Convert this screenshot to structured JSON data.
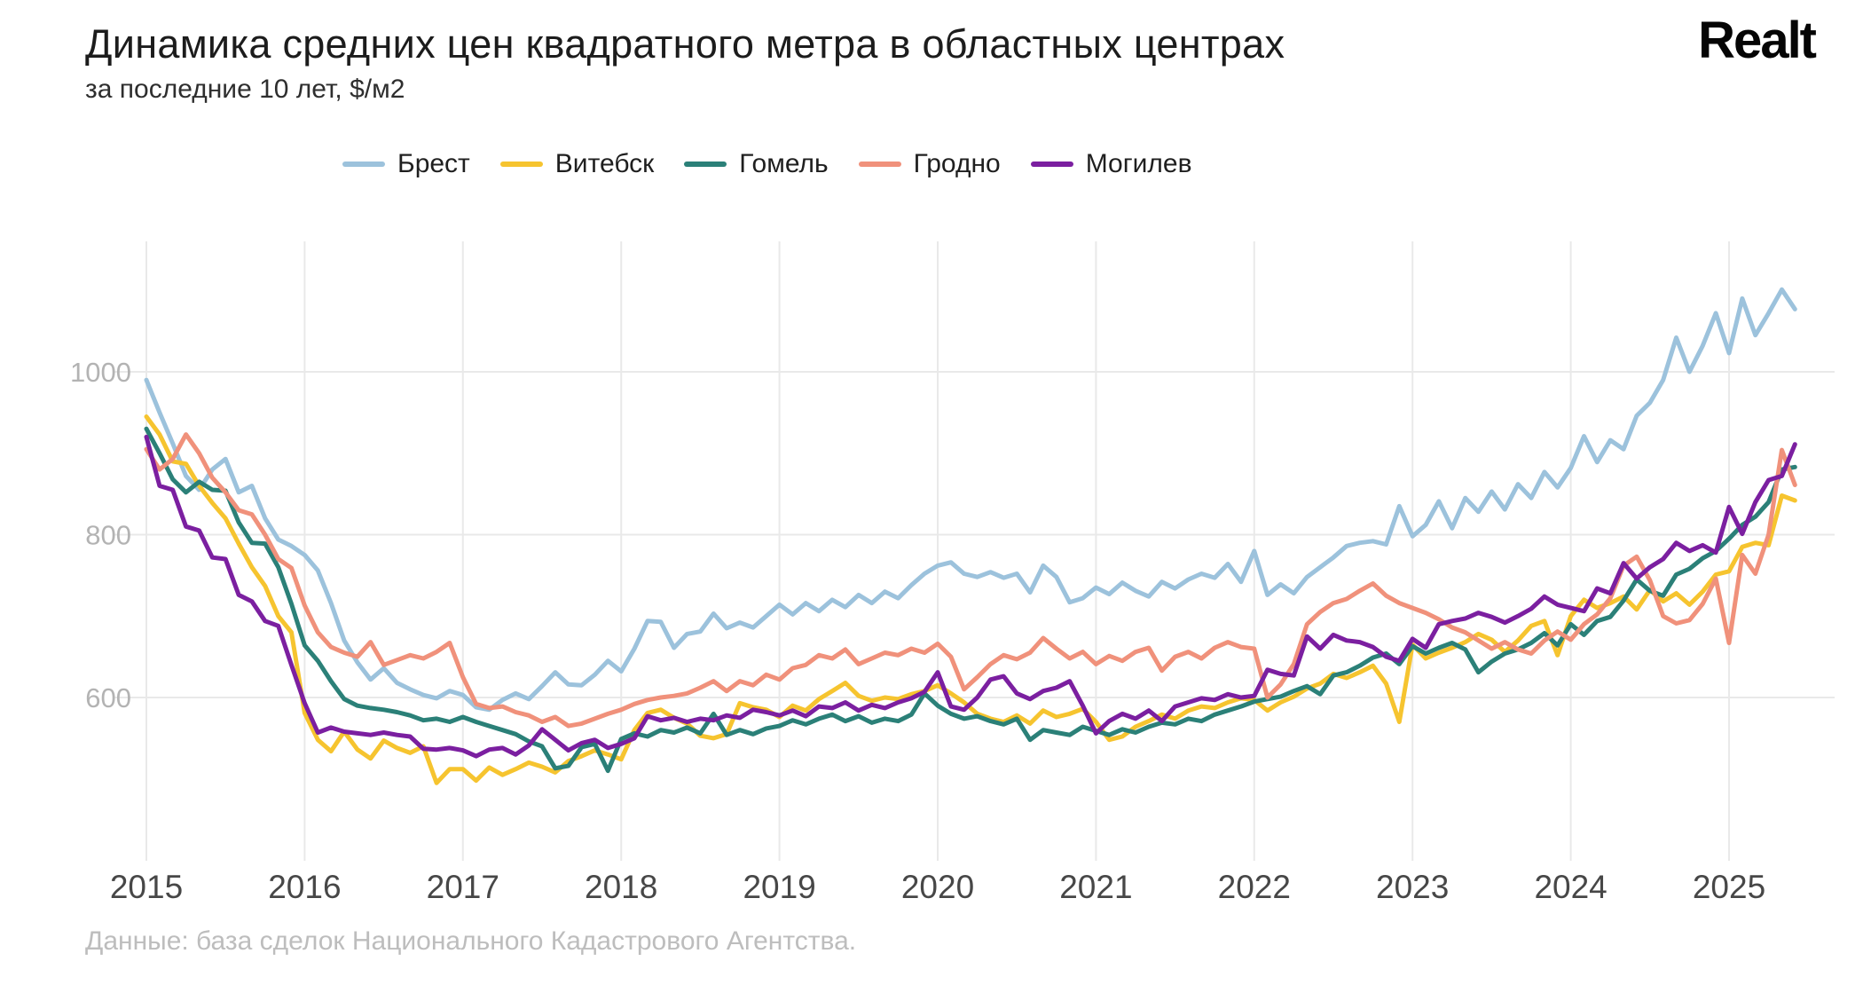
{
  "header": {
    "title": "Динамика средних цен квадратного метра в областных центрах",
    "subtitle": "за последние 10 лет, $/м2",
    "logo": "Realt"
  },
  "footer": {
    "source": "Данные: база сделок Национального Кадастрового Агентства."
  },
  "colors": {
    "grid": "#e9e9e9",
    "background": "#ffffff"
  },
  "chart_data": {
    "type": "line",
    "title": "Динамика средних цен квадратного метра в областных центрах",
    "subtitle": "за последние 10 лет, $/м2",
    "unit": "$/м2",
    "x_start": "2015-01",
    "x_step_months": 1,
    "x_tick_labels": [
      "2015",
      "2016",
      "2017",
      "2018",
      "2019",
      "2020",
      "2021",
      "2022",
      "2023",
      "2024",
      "2025"
    ],
    "y_ticks": [
      600,
      800,
      1000
    ],
    "ylim": [
      400,
      1160
    ],
    "grid": true,
    "legend_position": "top",
    "series": [
      {
        "name": "Брест",
        "color": "#9cc2dc",
        "values": [
          990,
          950,
          912,
          872,
          855,
          880,
          893,
          852,
          860,
          820,
          794,
          786,
          775,
          756,
          716,
          670,
          643,
          622,
          636,
          618,
          610,
          603,
          599,
          608,
          603,
          588,
          585,
          597,
          605,
          598,
          614,
          631,
          616,
          615,
          628,
          645,
          632,
          660,
          694,
          693,
          661,
          678,
          681,
          703,
          685,
          692,
          686,
          700,
          714,
          702,
          716,
          706,
          720,
          711,
          726,
          716,
          730,
          722,
          738,
          752,
          762,
          766,
          752,
          748,
          754,
          747,
          752,
          729,
          762,
          748,
          717,
          722,
          735,
          727,
          741,
          731,
          724,
          742,
          734,
          745,
          752,
          747,
          764,
          742,
          780,
          726,
          739,
          728,
          748,
          760,
          772,
          786,
          790,
          792,
          788,
          835,
          798,
          812,
          841,
          808,
          845,
          828,
          853,
          831,
          862,
          845,
          877,
          858,
          882,
          921,
          889,
          916,
          905,
          946,
          962,
          990,
          1042,
          1000,
          1032,
          1072,
          1023,
          1090,
          1045,
          1072,
          1101,
          1077
        ]
      },
      {
        "name": "Витебск",
        "color": "#f6c42f",
        "values": [
          945,
          923,
          890,
          887,
          860,
          839,
          820,
          789,
          760,
          737,
          700,
          680,
          581,
          548,
          534,
          558,
          536,
          525,
          547,
          538,
          532,
          540,
          495,
          512,
          512,
          498,
          514,
          505,
          512,
          520,
          515,
          508,
          522,
          528,
          535,
          530,
          524,
          560,
          581,
          585,
          575,
          568,
          553,
          550,
          555,
          593,
          588,
          585,
          576,
          590,
          584,
          598,
          608,
          618,
          602,
          596,
          600,
          598,
          604,
          608,
          615,
          605,
          594,
          580,
          574,
          570,
          578,
          568,
          584,
          576,
          580,
          586,
          570,
          548,
          552,
          564,
          571,
          579,
          574,
          584,
          589,
          587,
          594,
          599,
          597,
          584,
          594,
          601,
          611,
          617,
          629,
          624,
          631,
          639,
          617,
          570,
          665,
          648,
          655,
          661,
          668,
          678,
          671,
          656,
          670,
          688,
          694,
          652,
          700,
          720,
          710,
          716,
          724,
          708,
          732,
          718,
          728,
          714,
          730,
          751,
          755,
          785,
          790,
          787,
          848,
          842
        ]
      },
      {
        "name": "Гомель",
        "color": "#2b8078",
        "values": [
          930,
          900,
          868,
          852,
          865,
          855,
          854,
          815,
          790,
          789,
          760,
          715,
          664,
          645,
          620,
          598,
          590,
          587,
          585,
          582,
          578,
          572,
          574,
          570,
          576,
          570,
          565,
          560,
          555,
          546,
          540,
          513,
          516,
          539,
          543,
          510,
          549,
          556,
          552,
          560,
          557,
          563,
          556,
          580,
          554,
          560,
          555,
          562,
          565,
          572,
          567,
          574,
          579,
          571,
          577,
          569,
          574,
          571,
          579,
          605,
          590,
          580,
          574,
          577,
          571,
          567,
          574,
          548,
          560,
          557,
          554,
          564,
          559,
          554,
          561,
          557,
          564,
          569,
          567,
          574,
          571,
          579,
          584,
          589,
          595,
          598,
          601,
          608,
          614,
          604,
          627,
          631,
          639,
          649,
          654,
          641,
          663,
          654,
          661,
          667,
          659,
          631,
          644,
          654,
          659,
          667,
          679,
          664,
          690,
          677,
          694,
          699,
          719,
          745,
          731,
          725,
          751,
          758,
          771,
          780,
          795,
          812,
          822,
          840,
          880,
          883
        ]
      },
      {
        "name": "Гродно",
        "color": "#f0917b",
        "values": [
          905,
          880,
          893,
          923,
          900,
          870,
          852,
          830,
          825,
          800,
          770,
          759,
          713,
          680,
          662,
          655,
          650,
          668,
          640,
          646,
          652,
          648,
          656,
          667,
          625,
          592,
          587,
          589,
          582,
          578,
          570,
          576,
          565,
          568,
          574,
          580,
          585,
          592,
          597,
          600,
          602,
          605,
          612,
          620,
          608,
          620,
          615,
          628,
          622,
          636,
          640,
          652,
          648,
          659,
          641,
          648,
          655,
          652,
          660,
          655,
          666,
          650,
          610,
          625,
          641,
          652,
          647,
          655,
          673,
          660,
          648,
          656,
          641,
          651,
          645,
          656,
          661,
          633,
          650,
          656,
          648,
          661,
          668,
          662,
          660,
          600,
          616,
          641,
          690,
          705,
          716,
          721,
          731,
          740,
          725,
          716,
          710,
          704,
          696,
          686,
          680,
          670,
          660,
          668,
          659,
          654,
          670,
          681,
          671,
          690,
          702,
          722,
          762,
          773,
          744,
          700,
          691,
          695,
          715,
          746,
          667,
          775,
          752,
          800,
          904,
          861
        ]
      },
      {
        "name": "Могилев",
        "color": "#7b1fa0",
        "values": [
          920,
          860,
          855,
          810,
          805,
          772,
          770,
          726,
          718,
          694,
          688,
          640,
          593,
          557,
          563,
          558,
          556,
          554,
          557,
          554,
          552,
          537,
          536,
          538,
          535,
          528,
          536,
          538,
          530,
          541,
          561,
          548,
          535,
          544,
          548,
          538,
          543,
          550,
          577,
          572,
          575,
          570,
          574,
          572,
          578,
          575,
          585,
          582,
          578,
          584,
          577,
          589,
          587,
          594,
          584,
          591,
          587,
          594,
          599,
          607,
          631,
          589,
          585,
          600,
          622,
          626,
          605,
          598,
          608,
          612,
          620,
          590,
          556,
          571,
          580,
          574,
          584,
          571,
          589,
          594,
          599,
          597,
          604,
          600,
          602,
          634,
          629,
          627,
          675,
          660,
          677,
          670,
          668,
          662,
          650,
          645,
          672,
          661,
          690,
          694,
          697,
          704,
          699,
          692,
          700,
          709,
          724,
          714,
          710,
          706,
          734,
          728,
          765,
          746,
          760,
          770,
          790,
          780,
          787,
          778,
          834,
          801,
          840,
          867,
          872,
          911
        ]
      }
    ]
  }
}
